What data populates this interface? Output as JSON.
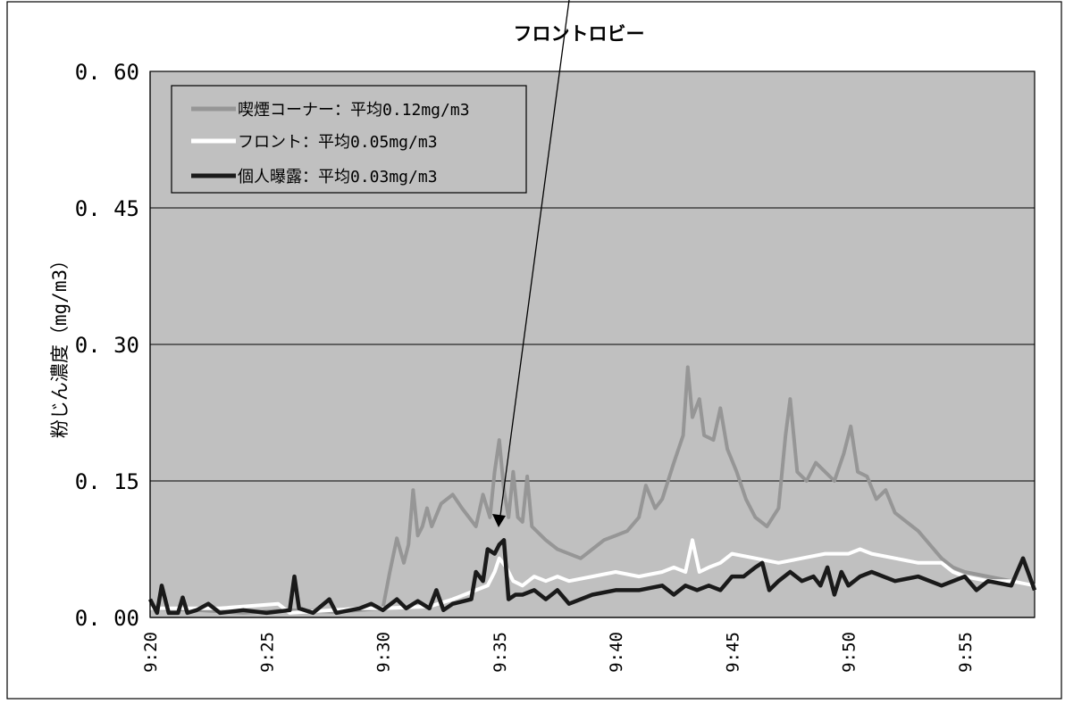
{
  "annotation": {
    "text": "フロントロビー"
  },
  "chart_data": {
    "type": "line",
    "title": "",
    "xlabel": "",
    "ylabel": "粉じん濃度（mg/m3）",
    "x_unit": "minutes",
    "xlim": [
      "9:20",
      "9:58"
    ],
    "ylim": [
      0,
      0.6
    ],
    "y_ticks": [
      "0.00",
      "0.15",
      "0.30",
      "0.45",
      "0.60"
    ],
    "x_ticks": [
      "9:20",
      "9:25",
      "9:30",
      "9:35",
      "9:40",
      "9:45",
      "9:50",
      "9:55"
    ],
    "grid": "horizontal",
    "legend_position": "top-left",
    "plot_background": "#c0c0c0",
    "series": [
      {
        "name": "喫煙コーナー：平均0.12mg/m3",
        "color": "#969696",
        "points": [
          [
            "9:20",
            0.01
          ],
          [
            "9:22",
            0.008
          ],
          [
            "9:24",
            0.005
          ],
          [
            "9:26",
            0.008
          ],
          [
            "9:28",
            0.006
          ],
          [
            "9:29",
            0.008
          ],
          [
            "9:30",
            0.01
          ],
          [
            "9:30.3",
            0.05
          ],
          [
            "9:30.6",
            0.087
          ],
          [
            "9:30.9",
            0.06
          ],
          [
            "9:31.1",
            0.08
          ],
          [
            "9:31.3",
            0.14
          ],
          [
            "9:31.5",
            0.09
          ],
          [
            "9:31.7",
            0.1
          ],
          [
            "9:31.9",
            0.12
          ],
          [
            "9:32.1",
            0.1
          ],
          [
            "9:32.5",
            0.125
          ],
          [
            "9:33",
            0.135
          ],
          [
            "9:33.4",
            0.12
          ],
          [
            "9:34",
            0.1
          ],
          [
            "9:34.3",
            0.135
          ],
          [
            "9:34.6",
            0.11
          ],
          [
            "9:34.8",
            0.16
          ],
          [
            "9:35",
            0.195
          ],
          [
            "9:35.2",
            0.14
          ],
          [
            "9:35.4",
            0.11
          ],
          [
            "9:35.6",
            0.16
          ],
          [
            "9:35.8",
            0.11
          ],
          [
            "9:36",
            0.105
          ],
          [
            "9:36.2",
            0.155
          ],
          [
            "9:36.4",
            0.1
          ],
          [
            "9:37",
            0.085
          ],
          [
            "9:37.5",
            0.075
          ],
          [
            "9:38",
            0.07
          ],
          [
            "9:38.5",
            0.065
          ],
          [
            "9:39",
            0.075
          ],
          [
            "9:39.5",
            0.085
          ],
          [
            "9:40",
            0.09
          ],
          [
            "9:40.5",
            0.095
          ],
          [
            "9:41",
            0.11
          ],
          [
            "9:41.3",
            0.145
          ],
          [
            "9:41.7",
            0.12
          ],
          [
            "9:42",
            0.13
          ],
          [
            "9:42.5",
            0.17
          ],
          [
            "9:42.9",
            0.2
          ],
          [
            "9:43.1",
            0.275
          ],
          [
            "9:43.3",
            0.22
          ],
          [
            "9:43.6",
            0.24
          ],
          [
            "9:43.8",
            0.2
          ],
          [
            "9:44.2",
            0.195
          ],
          [
            "9:44.5",
            0.23
          ],
          [
            "9:44.8",
            0.185
          ],
          [
            "9:45.2",
            0.16
          ],
          [
            "9:45.6",
            0.13
          ],
          [
            "9:46",
            0.11
          ],
          [
            "9:46.5",
            0.1
          ],
          [
            "9:47",
            0.12
          ],
          [
            "9:47.3",
            0.2
          ],
          [
            "9:47.5",
            0.24
          ],
          [
            "9:47.8",
            0.16
          ],
          [
            "9:48.2",
            0.15
          ],
          [
            "9:48.6",
            0.17
          ],
          [
            "9:49",
            0.16
          ],
          [
            "9:49.4",
            0.15
          ],
          [
            "9:49.8",
            0.18
          ],
          [
            "9:50.1",
            0.21
          ],
          [
            "9:50.4",
            0.16
          ],
          [
            "9:50.8",
            0.155
          ],
          [
            "9:51.2",
            0.13
          ],
          [
            "9:51.6",
            0.14
          ],
          [
            "9:52",
            0.115
          ],
          [
            "9:52.5",
            0.105
          ],
          [
            "9:53",
            0.095
          ],
          [
            "9:53.5",
            0.08
          ],
          [
            "9:54",
            0.065
          ],
          [
            "9:54.5",
            0.055
          ],
          [
            "9:55",
            0.05
          ],
          [
            "9:56",
            0.045
          ],
          [
            "9:57",
            0.04
          ],
          [
            "9:58",
            0.035
          ]
        ]
      },
      {
        "name": "フロント：平均0.05mg/m3",
        "color": "#ffffff",
        "points": [
          [
            "9:20",
            0.01
          ],
          [
            "9:23",
            0.01
          ],
          [
            "9:25.5",
            0.015
          ],
          [
            "9:26",
            0.005
          ],
          [
            "9:29",
            0.01
          ],
          [
            "9:30",
            0.01
          ],
          [
            "9:32",
            0.012
          ],
          [
            "9:33",
            0.02
          ],
          [
            "9:34",
            0.03
          ],
          [
            "9:34.5",
            0.035
          ],
          [
            "9:34.8",
            0.05
          ],
          [
            "9:35",
            0.065
          ],
          [
            "9:35.3",
            0.055
          ],
          [
            "9:35.6",
            0.04
          ],
          [
            "9:36",
            0.035
          ],
          [
            "9:36.5",
            0.045
          ],
          [
            "9:37",
            0.04
          ],
          [
            "9:37.5",
            0.045
          ],
          [
            "9:38",
            0.04
          ],
          [
            "9:39",
            0.045
          ],
          [
            "9:40",
            0.05
          ],
          [
            "9:41",
            0.045
          ],
          [
            "9:42",
            0.05
          ],
          [
            "9:42.5",
            0.055
          ],
          [
            "9:43",
            0.05
          ],
          [
            "9:43.3",
            0.085
          ],
          [
            "9:43.6",
            0.05
          ],
          [
            "9:44",
            0.055
          ],
          [
            "9:44.5",
            0.06
          ],
          [
            "9:45",
            0.07
          ],
          [
            "9:46",
            0.065
          ],
          [
            "9:47",
            0.06
          ],
          [
            "9:48",
            0.065
          ],
          [
            "9:49",
            0.07
          ],
          [
            "9:50",
            0.07
          ],
          [
            "9:50.5",
            0.075
          ],
          [
            "9:51",
            0.07
          ],
          [
            "9:52",
            0.065
          ],
          [
            "9:53",
            0.06
          ],
          [
            "9:54",
            0.06
          ],
          [
            "9:54.5",
            0.05
          ],
          [
            "9:55",
            0.045
          ],
          [
            "9:56",
            0.04
          ],
          [
            "9:57",
            0.04
          ],
          [
            "9:58",
            0.035
          ]
        ]
      },
      {
        "name": "個人曝露：平均0.03mg/m3",
        "color": "#1a1a1a",
        "points": [
          [
            "9:20",
            0.02
          ],
          [
            "9:20.3",
            0.005
          ],
          [
            "9:20.5",
            0.035
          ],
          [
            "9:20.8",
            0.005
          ],
          [
            "9:21.2",
            0.005
          ],
          [
            "9:21.4",
            0.022
          ],
          [
            "9:21.6",
            0.005
          ],
          [
            "9:22",
            0.008
          ],
          [
            "9:22.5",
            0.015
          ],
          [
            "9:23",
            0.005
          ],
          [
            "9:24",
            0.008
          ],
          [
            "9:25",
            0.005
          ],
          [
            "9:26",
            0.008
          ],
          [
            "9:26.2",
            0.045
          ],
          [
            "9:26.4",
            0.01
          ],
          [
            "9:27",
            0.005
          ],
          [
            "9:27.7",
            0.02
          ],
          [
            "9:28",
            0.005
          ],
          [
            "9:29",
            0.01
          ],
          [
            "9:29.5",
            0.015
          ],
          [
            "9:30",
            0.008
          ],
          [
            "9:30.6",
            0.02
          ],
          [
            "9:31",
            0.01
          ],
          [
            "9:31.5",
            0.018
          ],
          [
            "9:32",
            0.01
          ],
          [
            "9:32.3",
            0.03
          ],
          [
            "9:32.6",
            0.008
          ],
          [
            "9:33",
            0.015
          ],
          [
            "9:33.8",
            0.02
          ],
          [
            "9:34",
            0.05
          ],
          [
            "9:34.3",
            0.04
          ],
          [
            "9:34.5",
            0.075
          ],
          [
            "9:34.8",
            0.07
          ],
          [
            "9:35",
            0.08
          ],
          [
            "9:35.2",
            0.085
          ],
          [
            "9:35.4",
            0.02
          ],
          [
            "9:35.7",
            0.025
          ],
          [
            "9:36",
            0.025
          ],
          [
            "9:36.5",
            0.03
          ],
          [
            "9:37",
            0.02
          ],
          [
            "9:37.5",
            0.03
          ],
          [
            "9:38",
            0.015
          ],
          [
            "9:39",
            0.025
          ],
          [
            "9:40",
            0.03
          ],
          [
            "9:41",
            0.03
          ],
          [
            "9:42",
            0.035
          ],
          [
            "9:42.5",
            0.025
          ],
          [
            "9:43",
            0.035
          ],
          [
            "9:43.5",
            0.03
          ],
          [
            "9:44",
            0.035
          ],
          [
            "9:44.5",
            0.03
          ],
          [
            "9:45",
            0.045
          ],
          [
            "9:45.5",
            0.045
          ],
          [
            "9:46",
            0.055
          ],
          [
            "9:46.3",
            0.06
          ],
          [
            "9:46.6",
            0.03
          ],
          [
            "9:47",
            0.04
          ],
          [
            "9:47.5",
            0.05
          ],
          [
            "9:48",
            0.04
          ],
          [
            "9:48.5",
            0.045
          ],
          [
            "9:48.8",
            0.035
          ],
          [
            "9:49.1",
            0.055
          ],
          [
            "9:49.4",
            0.025
          ],
          [
            "9:49.7",
            0.05
          ],
          [
            "9:50",
            0.035
          ],
          [
            "9:50.5",
            0.045
          ],
          [
            "9:51",
            0.05
          ],
          [
            "9:52",
            0.04
          ],
          [
            "9:53",
            0.045
          ],
          [
            "9:54",
            0.035
          ],
          [
            "9:55",
            0.045
          ],
          [
            "9:55.5",
            0.03
          ],
          [
            "9:56",
            0.04
          ],
          [
            "9:57",
            0.035
          ],
          [
            "9:57.5",
            0.065
          ],
          [
            "9:58",
            0.03
          ]
        ]
      }
    ]
  }
}
